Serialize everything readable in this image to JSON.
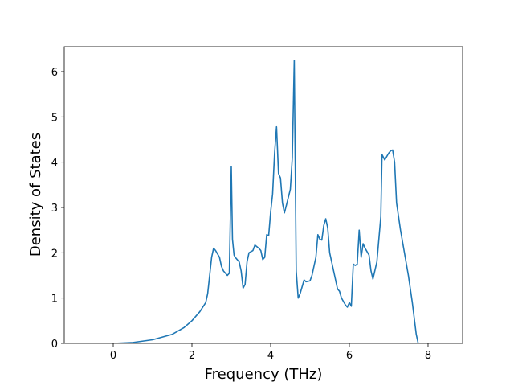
{
  "chart_data": {
    "type": "line",
    "x_label": "Frequency (THz)",
    "y_label": "Density of States",
    "xlim": [
      -1.245,
      8.878
    ],
    "ylim": [
      0,
      6.55
    ],
    "xticks": [
      0,
      2,
      4,
      6,
      8
    ],
    "yticks": [
      0,
      1,
      2,
      3,
      4,
      5,
      6
    ],
    "color": "#1f77b4",
    "x": [
      -0.8,
      0,
      0.5,
      1,
      1.5,
      1.8,
      2.0,
      2.2,
      2.35,
      2.4,
      2.45,
      2.5,
      2.55,
      2.6,
      2.7,
      2.75,
      2.8,
      2.9,
      2.95,
      3.0,
      3.03,
      3.07,
      3.1,
      3.2,
      3.25,
      3.3,
      3.35,
      3.4,
      3.45,
      3.55,
      3.6,
      3.7,
      3.75,
      3.8,
      3.85,
      3.9,
      3.95,
      4.0,
      4.05,
      4.1,
      4.15,
      4.2,
      4.25,
      4.3,
      4.35,
      4.4,
      4.5,
      4.55,
      4.6,
      4.65,
      4.7,
      4.75,
      4.85,
      4.9,
      5.0,
      5.05,
      5.15,
      5.2,
      5.25,
      5.3,
      5.35,
      5.4,
      5.45,
      5.5,
      5.6,
      5.7,
      5.75,
      5.8,
      5.9,
      5.95,
      6.0,
      6.05,
      6.1,
      6.15,
      6.2,
      6.25,
      6.3,
      6.35,
      6.4,
      6.5,
      6.55,
      6.6,
      6.7,
      6.8,
      6.83,
      6.9,
      7.0,
      7.05,
      7.1,
      7.15,
      7.2,
      7.3,
      7.5,
      7.6,
      7.7,
      7.75,
      8.45
    ],
    "values": [
      0,
      0,
      0.02,
      0.08,
      0.2,
      0.35,
      0.5,
      0.7,
      0.9,
      1.1,
      1.5,
      1.9,
      2.1,
      2.05,
      1.9,
      1.7,
      1.6,
      1.5,
      1.55,
      3.9,
      2.3,
      1.95,
      1.9,
      1.8,
      1.6,
      1.22,
      1.3,
      1.8,
      2.0,
      2.05,
      2.17,
      2.1,
      2.05,
      1.85,
      1.9,
      2.4,
      2.38,
      2.9,
      3.3,
      4.2,
      4.78,
      3.75,
      3.65,
      3.1,
      2.88,
      3.05,
      3.4,
      4.1,
      6.25,
      1.6,
      1.0,
      1.1,
      1.4,
      1.36,
      1.38,
      1.5,
      1.9,
      2.4,
      2.3,
      2.28,
      2.6,
      2.75,
      2.55,
      2.0,
      1.6,
      1.2,
      1.15,
      1.0,
      0.85,
      0.8,
      0.9,
      0.82,
      1.75,
      1.72,
      1.75,
      2.5,
      1.9,
      2.2,
      2.1,
      1.95,
      1.6,
      1.42,
      1.8,
      2.8,
      4.17,
      4.05,
      4.2,
      4.25,
      4.27,
      4.0,
      3.1,
      2.5,
      1.5,
      0.9,
      0.2,
      0,
      0
    ]
  }
}
